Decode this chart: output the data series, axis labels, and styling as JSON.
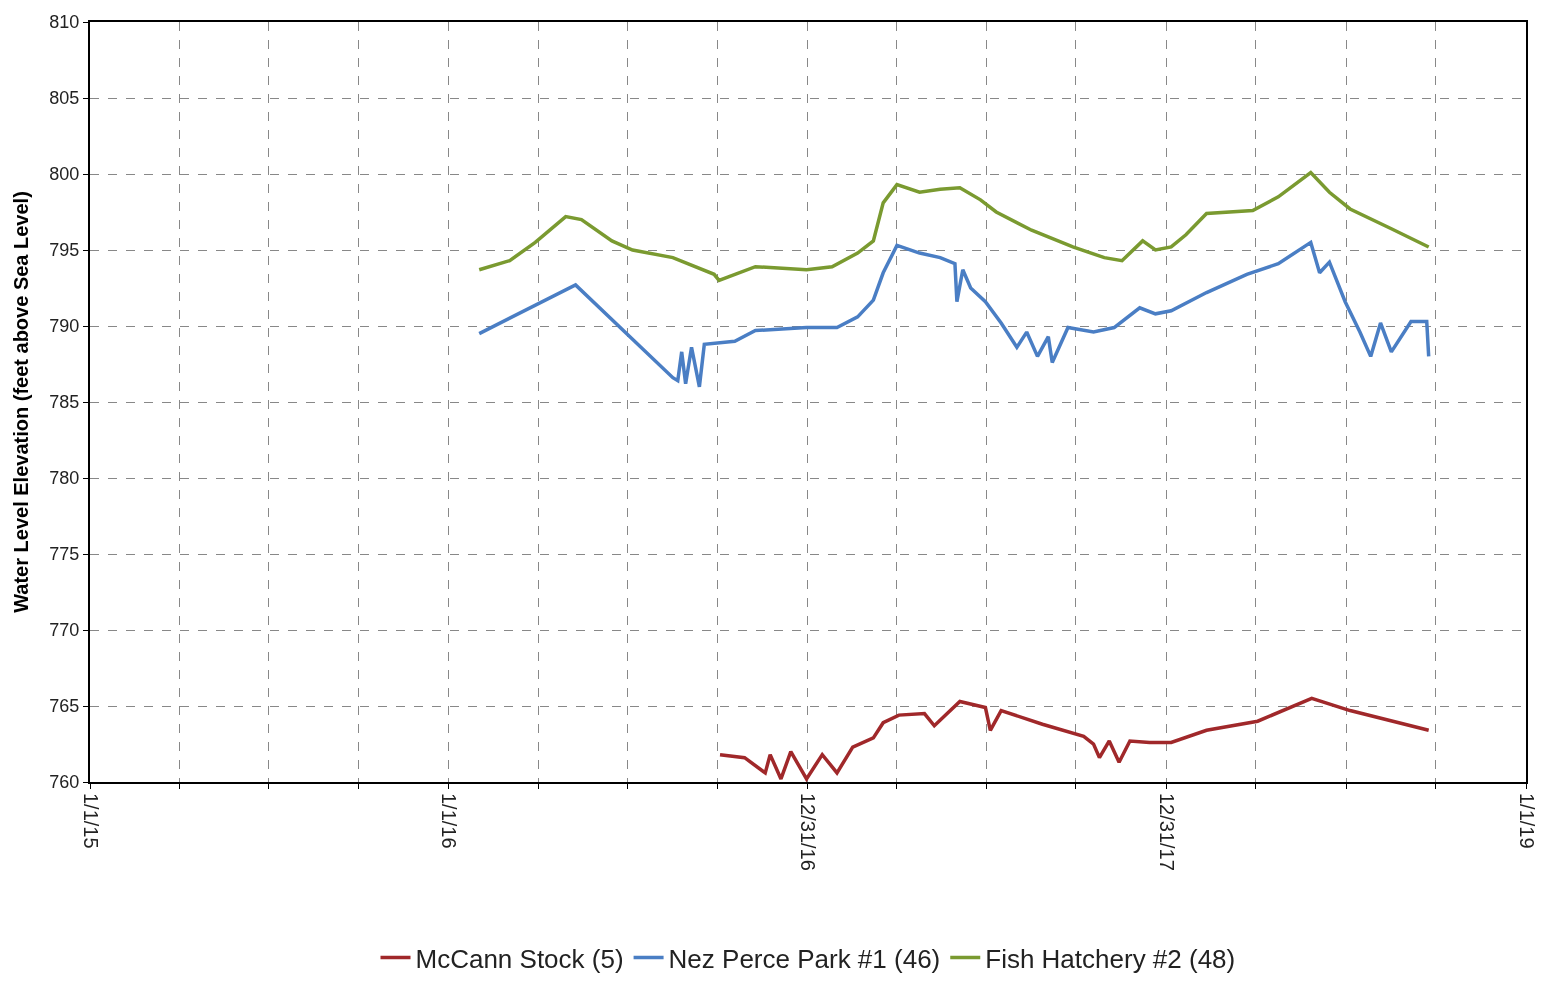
{
  "chart_data": {
    "type": "line",
    "ylabel": "Water Level Elevation (feet above Sea Level)",
    "ylim": [
      760,
      810
    ],
    "yticks": [
      760,
      765,
      770,
      775,
      780,
      785,
      790,
      795,
      800,
      805,
      810
    ],
    "xlim": [
      "2015-01-01",
      "2019-01-01"
    ],
    "xticks": [
      {
        "value": "2015-01-01",
        "label": "1/1/15"
      },
      {
        "value": "2015-04-02",
        "label": null
      },
      {
        "value": "2015-07-02",
        "label": null
      },
      {
        "value": "2015-10-01",
        "label": null
      },
      {
        "value": "2016-01-01",
        "label": "1/1/16"
      },
      {
        "value": "2016-04-01",
        "label": null
      },
      {
        "value": "2016-07-01",
        "label": null
      },
      {
        "value": "2016-09-30",
        "label": null
      },
      {
        "value": "2016-12-31",
        "label": "12/31/16"
      },
      {
        "value": "2017-04-01",
        "label": null
      },
      {
        "value": "2017-07-01",
        "label": null
      },
      {
        "value": "2017-09-30",
        "label": null
      },
      {
        "value": "2017-12-31",
        "label": "12/31/17"
      },
      {
        "value": "2018-04-01",
        "label": null
      },
      {
        "value": "2018-07-02",
        "label": null
      },
      {
        "value": "2018-10-01",
        "label": null
      },
      {
        "value": "2019-01-01",
        "label": "1/1/19"
      }
    ],
    "grid": true,
    "line_style": "solid",
    "marker": "none",
    "legend": "bottom",
    "series": [
      {
        "name": "McCann Stock (5)",
        "color": "#a0282a",
        "x": [
          "2016-10-03",
          "2016-10-28",
          "2016-11-18",
          "2016-11-23",
          "2016-12-04",
          "2016-12-14",
          "2016-12-30",
          "2017-01-15",
          "2017-01-30",
          "2017-02-15",
          "2017-03-08",
          "2017-03-18",
          "2017-04-03",
          "2017-04-29",
          "2017-05-09",
          "2017-06-04",
          "2017-06-30",
          "2017-07-05",
          "2017-07-16",
          "2017-08-27",
          "2017-10-08",
          "2017-10-18",
          "2017-10-24",
          "2017-11-03",
          "2017-11-13",
          "2017-11-24",
          "2017-12-14",
          "2018-01-05",
          "2018-02-10",
          "2018-04-03",
          "2018-05-28",
          "2018-07-06",
          "2018-09-24"
        ],
        "values": [
          761.8,
          761.6,
          760.6,
          761.8,
          760.2,
          762.0,
          760.2,
          761.8,
          760.6,
          762.3,
          762.9,
          763.9,
          764.4,
          764.5,
          763.7,
          765.3,
          764.9,
          763.4,
          764.7,
          763.8,
          763.0,
          762.5,
          761.6,
          762.7,
          761.3,
          762.7,
          762.6,
          762.6,
          763.4,
          764.0,
          765.5,
          764.7,
          763.4
        ]
      },
      {
        "name": "Nez Perce Park #1 (46)",
        "color": "#4a7ec4",
        "x": [
          "2016-02-01",
          "2016-05-09",
          "2016-08-16",
          "2016-08-21",
          "2016-08-25",
          "2016-08-29",
          "2016-09-04",
          "2016-09-12",
          "2016-09-17",
          "2016-10-18",
          "2016-11-08",
          "2016-12-30",
          "2017-01-30",
          "2017-02-20",
          "2017-03-08",
          "2017-03-18",
          "2017-04-01",
          "2017-04-24",
          "2017-05-15",
          "2017-05-30",
          "2017-06-01",
          "2017-06-07",
          "2017-06-15",
          "2017-06-30",
          "2017-07-16",
          "2017-08-01",
          "2017-08-11",
          "2017-08-22",
          "2017-09-02",
          "2017-09-06",
          "2017-09-22",
          "2017-10-18",
          "2017-11-08",
          "2017-12-04",
          "2017-12-20",
          "2018-01-05",
          "2018-02-10",
          "2018-03-23",
          "2018-04-24",
          "2018-05-27",
          "2018-06-05",
          "2018-06-15",
          "2018-07-01",
          "2018-07-16",
          "2018-07-27",
          "2018-08-06",
          "2018-08-17",
          "2018-09-06",
          "2018-09-22",
          "2018-09-24"
        ],
        "values": [
          789.5,
          792.7,
          786.6,
          786.4,
          788.3,
          786.2,
          788.6,
          786.0,
          788.8,
          789.0,
          789.7,
          789.9,
          789.9,
          790.6,
          791.7,
          793.5,
          795.3,
          794.8,
          794.5,
          794.1,
          791.6,
          793.7,
          792.5,
          791.6,
          790.2,
          788.6,
          789.6,
          788.0,
          789.3,
          787.6,
          789.9,
          789.6,
          789.9,
          791.2,
          790.8,
          791.0,
          792.2,
          793.4,
          794.1,
          795.5,
          793.5,
          794.2,
          791.6,
          789.6,
          788.0,
          790.2,
          788.3,
          790.3,
          790.3,
          788.0
        ]
      },
      {
        "name": "Fish Hatchery #2 (48)",
        "color": "#7a9a30",
        "x": [
          "2016-02-01",
          "2016-03-03",
          "2016-03-29",
          "2016-04-29",
          "2016-05-15",
          "2016-06-15",
          "2016-07-06",
          "2016-08-16",
          "2016-09-27",
          "2016-10-02",
          "2016-11-08",
          "2016-12-30",
          "2017-01-25",
          "2017-02-20",
          "2017-03-08",
          "2017-03-18",
          "2017-04-01",
          "2017-04-24",
          "2017-05-15",
          "2017-06-04",
          "2017-06-25",
          "2017-07-11",
          "2017-08-16",
          "2017-09-27",
          "2017-10-29",
          "2017-11-16",
          "2017-12-07",
          "2017-12-20",
          "2018-01-05",
          "2018-01-20",
          "2018-02-10",
          "2018-03-29",
          "2018-04-24",
          "2018-05-27",
          "2018-06-15",
          "2018-07-06",
          "2018-08-17",
          "2018-09-24"
        ],
        "values": [
          793.7,
          794.3,
          795.5,
          797.2,
          797.0,
          795.6,
          795.0,
          794.5,
          793.4,
          793.0,
          793.9,
          793.7,
          793.9,
          794.8,
          795.6,
          798.1,
          799.3,
          798.8,
          799.0,
          799.1,
          798.3,
          797.5,
          796.3,
          795.2,
          794.5,
          794.3,
          795.6,
          795.0,
          795.2,
          796.0,
          797.4,
          797.6,
          798.5,
          800.1,
          798.8,
          797.7,
          796.4,
          795.2
        ]
      }
    ]
  }
}
